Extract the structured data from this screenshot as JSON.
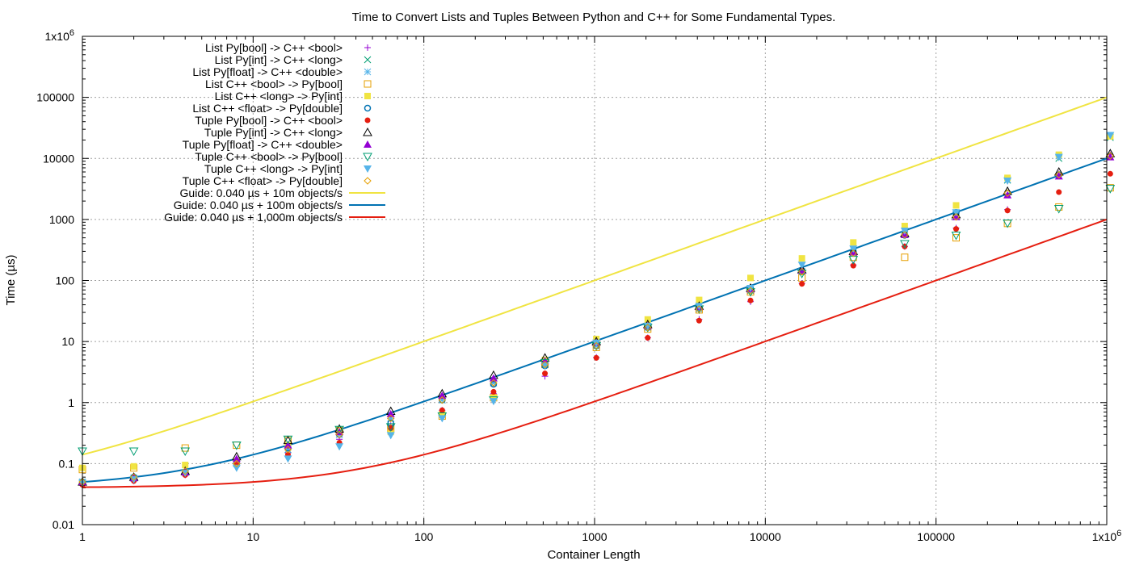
{
  "chart_data": {
    "type": "scatter",
    "title": "Time to Convert Lists and Tuples Between Python and C++ for Some Fundamental Types.",
    "xlabel": "Container Length",
    "ylabel": "Time (µs)",
    "xscale": "log",
    "yscale": "log",
    "xlim": [
      1,
      1000000
    ],
    "ylim": [
      0.01,
      1000000
    ],
    "grid": true,
    "legend_position": "top-left",
    "x": [
      1,
      2,
      4,
      8,
      16,
      32,
      64,
      128,
      256,
      512,
      1024,
      2048,
      4096,
      8192,
      16384,
      32768,
      65536,
      131072,
      262144,
      524288,
      1048576
    ],
    "x_tick_labels": [
      "1",
      "10",
      "100",
      "1000",
      "10000",
      "100000",
      "1x10^6"
    ],
    "y_tick_labels": [
      "0.01",
      "0.1",
      "1",
      "10",
      "100",
      "1000",
      "10000",
      "100000",
      "1x10^6"
    ],
    "series": [
      {
        "name": "List Py[bool] -> C++ <bool>",
        "marker": "plus",
        "color": "#9400d3",
        "values": [
          0.045,
          0.052,
          0.065,
          0.09,
          0.15,
          0.25,
          0.42,
          0.75,
          1.4,
          2.7,
          5.5,
          11.5,
          23,
          45,
          90,
          180,
          360,
          720,
          1450,
          5600,
          11500
        ]
      },
      {
        "name": "List Py[int] -> C++ <long>",
        "marker": "cross",
        "color": "#009e73",
        "values": [
          0.05,
          0.058,
          0.072,
          0.1,
          0.17,
          0.3,
          0.55,
          1.1,
          2.1,
          4.2,
          8.5,
          17,
          34,
          68,
          140,
          280,
          560,
          1100,
          4400,
          10000,
          22000
        ]
      },
      {
        "name": "List Py[float] -> C++ <double>",
        "marker": "star",
        "color": "#56b4e9",
        "values": [
          0.05,
          0.058,
          0.072,
          0.1,
          0.17,
          0.3,
          0.55,
          1.1,
          2.1,
          4.2,
          8.5,
          17,
          34,
          70,
          140,
          290,
          580,
          1150,
          4500,
          11000,
          23000
        ]
      },
      {
        "name": "List C++ <bool> -> Py[bool]",
        "marker": "square-open",
        "color": "#e69f00",
        "values": [
          0.08,
          0.085,
          0.18,
          0.2,
          0.24,
          0.35,
          0.38,
          0.6,
          1.2,
          4.2,
          8.0,
          16,
          33,
          65,
          110,
          240,
          240,
          500,
          860,
          1600,
          3300
        ]
      },
      {
        "name": "List C++ <long> -> Py[int]",
        "marker": "square",
        "color": "#f0e442",
        "values": [
          0.085,
          0.09,
          0.095,
          0.11,
          0.2,
          0.34,
          0.33,
          0.65,
          1.2,
          5.0,
          11,
          23,
          48,
          110,
          230,
          420,
          780,
          1700,
          4800,
          11500,
          23000
        ]
      },
      {
        "name": "List C++ <float> -> Py[double]",
        "marker": "circle-open",
        "color": "#0072b2",
        "values": [
          0.05,
          0.06,
          0.07,
          0.1,
          0.18,
          0.3,
          0.46,
          1.1,
          2.0,
          4.0,
          8.5,
          17,
          35,
          72,
          145,
          290,
          550,
          1300,
          2700,
          5400,
          11000
        ]
      },
      {
        "name": "Tuple Py[bool] -> C++ <bool>",
        "marker": "circle",
        "color": "#e51e10",
        "values": [
          0.045,
          0.052,
          0.065,
          0.095,
          0.14,
          0.22,
          0.38,
          0.75,
          1.5,
          3.0,
          5.4,
          11.5,
          22,
          47,
          88,
          175,
          360,
          700,
          1400,
          2800,
          5600
        ]
      },
      {
        "name": "Tuple Py[int] -> C++ <long>",
        "marker": "triangle-open",
        "color": "#000000",
        "values": [
          0.05,
          0.06,
          0.075,
          0.13,
          0.24,
          0.37,
          0.72,
          1.4,
          2.8,
          5.4,
          10,
          19,
          38,
          75,
          150,
          300,
          590,
          1200,
          2900,
          6000,
          12000
        ]
      },
      {
        "name": "Tuple Py[float] -> C++ <double>",
        "marker": "triangle",
        "color": "#9400d3",
        "values": [
          0.05,
          0.058,
          0.072,
          0.12,
          0.2,
          0.33,
          0.65,
          1.3,
          2.5,
          4.8,
          9.5,
          18,
          37,
          72,
          145,
          290,
          560,
          1100,
          2500,
          5100,
          10500
        ]
      },
      {
        "name": "Tuple C++ <bool> -> Py[bool]",
        "marker": "triangle-down-open",
        "color": "#009e73",
        "values": [
          0.16,
          0.16,
          0.16,
          0.2,
          0.25,
          0.36,
          0.4,
          0.6,
          1.1,
          4.5,
          8.5,
          17,
          34,
          65,
          130,
          220,
          400,
          550,
          870,
          1500,
          3200
        ]
      },
      {
        "name": "Tuple C++ <long> -> Py[int]",
        "marker": "triangle-down",
        "color": "#56b4e9",
        "values": [
          0.048,
          0.055,
          0.07,
          0.085,
          0.12,
          0.19,
          0.29,
          0.55,
          1.05,
          4.0,
          9.5,
          18,
          38,
          75,
          180,
          330,
          650,
          1300,
          4300,
          10500,
          24000
        ]
      },
      {
        "name": "Tuple C++ <float> -> Py[double]",
        "marker": "diamond-open",
        "color": "#e69f00",
        "values": [
          0.05,
          0.06,
          0.075,
          0.1,
          0.17,
          0.3,
          0.55,
          1.1,
          2.1,
          4.2,
          8.5,
          17,
          34,
          68,
          140,
          280,
          560,
          1100,
          2700,
          5400,
          11000
        ]
      }
    ],
    "guides": [
      {
        "name": "Guide: 0.040 µs + 10m objects/s",
        "color": "#f0e442",
        "offset_us": 0.04,
        "objects_per_s": 10000000
      },
      {
        "name": "Guide: 0.040 µs + 100m objects/s",
        "color": "#0072b2",
        "offset_us": 0.04,
        "objects_per_s": 100000000
      },
      {
        "name": "Guide: 0.040 µs + 1,000m objects/s",
        "color": "#e51e10",
        "offset_us": 0.04,
        "objects_per_s": 1000000000
      }
    ]
  }
}
